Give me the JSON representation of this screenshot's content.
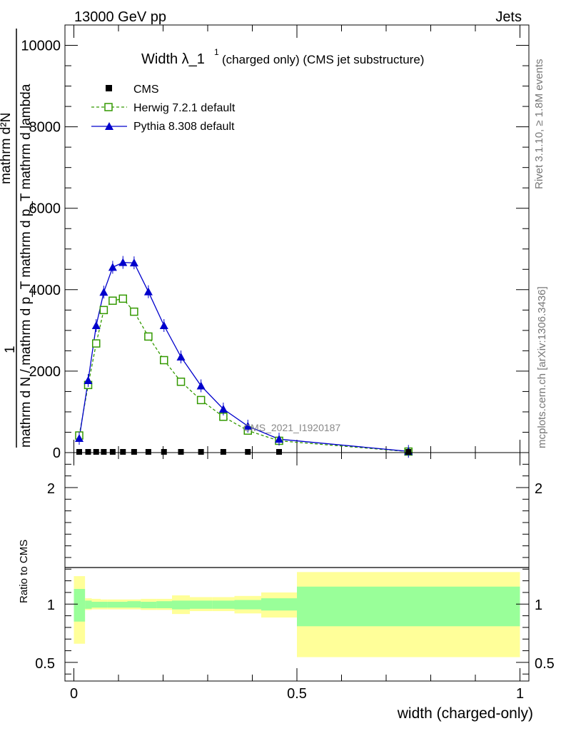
{
  "header": {
    "energy": "13000 GeV pp",
    "category": "Jets"
  },
  "side_text": {
    "rivet": "Rivet 3.1.10, ≥ 1.8M events",
    "mcplots": "mcplots.cern.ch [arXiv:1306.3436]"
  },
  "watermark": "CMS_2021_I1920187",
  "chart_data": [
    {
      "type": "line",
      "title_main": "Width λ_1",
      "title_sup": "1",
      "title_sub": "(charged only) (CMS jet substructure)",
      "ylabel": "1 mathrm dN / mathrm d p_T mathrm d p_T mathrm d lambda",
      "ylabel_denominator": "mathrm d N / mathrm d p_T mathrm d p_T mathrm d lambda",
      "ylabel_numerator": "mathrm d²N",
      "ylabel_one": "1",
      "xlim": [
        -0.02,
        1.02
      ],
      "ylim": [
        0,
        10500
      ],
      "yticks": [
        0,
        2000,
        4000,
        6000,
        8000,
        10000
      ],
      "ytick_labels": [
        "0",
        "2000",
        "4000",
        "6000",
        "8000",
        "10000"
      ],
      "legend_position": "top-left",
      "series": [
        {
          "name": "CMS",
          "marker": "square",
          "color": "#000000",
          "x": [
            0.012,
            0.032,
            0.05,
            0.067,
            0.087,
            0.11,
            0.135,
            0.167,
            0.202,
            0.24,
            0.285,
            0.335,
            0.39,
            0.46,
            0.75
          ],
          "y": [
            0,
            0,
            0,
            0,
            0,
            0,
            0,
            0,
            0,
            0,
            0,
            0,
            0,
            0,
            0
          ]
        },
        {
          "name": "Herwig 7.2.1 default",
          "marker": "open-square",
          "dash": true,
          "color": "#339900",
          "x": [
            0.012,
            0.032,
            0.05,
            0.067,
            0.087,
            0.11,
            0.135,
            0.167,
            0.202,
            0.24,
            0.285,
            0.335,
            0.39,
            0.46,
            0.75
          ],
          "y": [
            420,
            1660,
            2680,
            3500,
            3730,
            3780,
            3460,
            2850,
            2270,
            1740,
            1290,
            880,
            540,
            290,
            25
          ]
        },
        {
          "name": "Pythia 8.308 default",
          "marker": "triangle",
          "color": "#0000cc",
          "x": [
            0.012,
            0.032,
            0.05,
            0.067,
            0.087,
            0.11,
            0.135,
            0.167,
            0.202,
            0.24,
            0.285,
            0.335,
            0.39,
            0.46,
            0.75
          ],
          "y": [
            350,
            1770,
            3120,
            3940,
            4550,
            4670,
            4660,
            3950,
            3120,
            2350,
            1640,
            1070,
            650,
            330,
            30
          ]
        }
      ]
    },
    {
      "type": "area",
      "ylabel": "Ratio to CMS",
      "xlabel": "width (charged-only)",
      "xlim": [
        -0.02,
        1.02
      ],
      "ylim": [
        0.34,
        2.3
      ],
      "xticks": [
        0,
        0.5,
        1
      ],
      "xtick_labels": [
        "0",
        "0.5",
        "1"
      ],
      "yticks": [
        0.5,
        1,
        2
      ],
      "ytick_labels": [
        "0.5",
        "1",
        "2"
      ],
      "bins": [
        {
          "lo": 0.0,
          "hi": 0.025,
          "green": [
            0.85,
            1.13
          ],
          "yellow": [
            0.66,
            1.24
          ]
        },
        {
          "lo": 0.025,
          "hi": 0.04,
          "green": [
            0.96,
            1.03
          ],
          "yellow": [
            0.95,
            1.05
          ]
        },
        {
          "lo": 0.04,
          "hi": 0.06,
          "green": [
            0.97,
            1.02
          ],
          "yellow": [
            0.955,
            1.045
          ]
        },
        {
          "lo": 0.06,
          "hi": 0.075,
          "green": [
            0.97,
            1.02
          ],
          "yellow": [
            0.955,
            1.04
          ]
        },
        {
          "lo": 0.075,
          "hi": 0.1,
          "green": [
            0.97,
            1.02
          ],
          "yellow": [
            0.955,
            1.04
          ]
        },
        {
          "lo": 0.1,
          "hi": 0.12,
          "green": [
            0.97,
            1.02
          ],
          "yellow": [
            0.955,
            1.04
          ]
        },
        {
          "lo": 0.12,
          "hi": 0.15,
          "green": [
            0.97,
            1.025
          ],
          "yellow": [
            0.955,
            1.04
          ]
        },
        {
          "lo": 0.15,
          "hi": 0.185,
          "green": [
            0.965,
            1.02
          ],
          "yellow": [
            0.95,
            1.045
          ]
        },
        {
          "lo": 0.185,
          "hi": 0.22,
          "green": [
            0.965,
            1.025
          ],
          "yellow": [
            0.95,
            1.045
          ]
        },
        {
          "lo": 0.22,
          "hi": 0.26,
          "green": [
            0.955,
            1.03
          ],
          "yellow": [
            0.915,
            1.075
          ]
        },
        {
          "lo": 0.26,
          "hi": 0.31,
          "green": [
            0.96,
            1.03
          ],
          "yellow": [
            0.94,
            1.06
          ]
        },
        {
          "lo": 0.31,
          "hi": 0.36,
          "green": [
            0.96,
            1.03
          ],
          "yellow": [
            0.94,
            1.06
          ]
        },
        {
          "lo": 0.36,
          "hi": 0.42,
          "green": [
            0.955,
            1.035
          ],
          "yellow": [
            0.92,
            1.07
          ]
        },
        {
          "lo": 0.42,
          "hi": 0.5,
          "green": [
            0.945,
            1.05
          ],
          "yellow": [
            0.885,
            1.1
          ]
        },
        {
          "lo": 0.5,
          "hi": 1.0,
          "green": [
            0.81,
            1.15
          ],
          "yellow": [
            0.545,
            1.275
          ]
        }
      ]
    }
  ],
  "colors": {
    "green_band": "#99ff99",
    "yellow_band": "#ffff99",
    "herwig": "#339900",
    "pythia": "#0000cc"
  }
}
